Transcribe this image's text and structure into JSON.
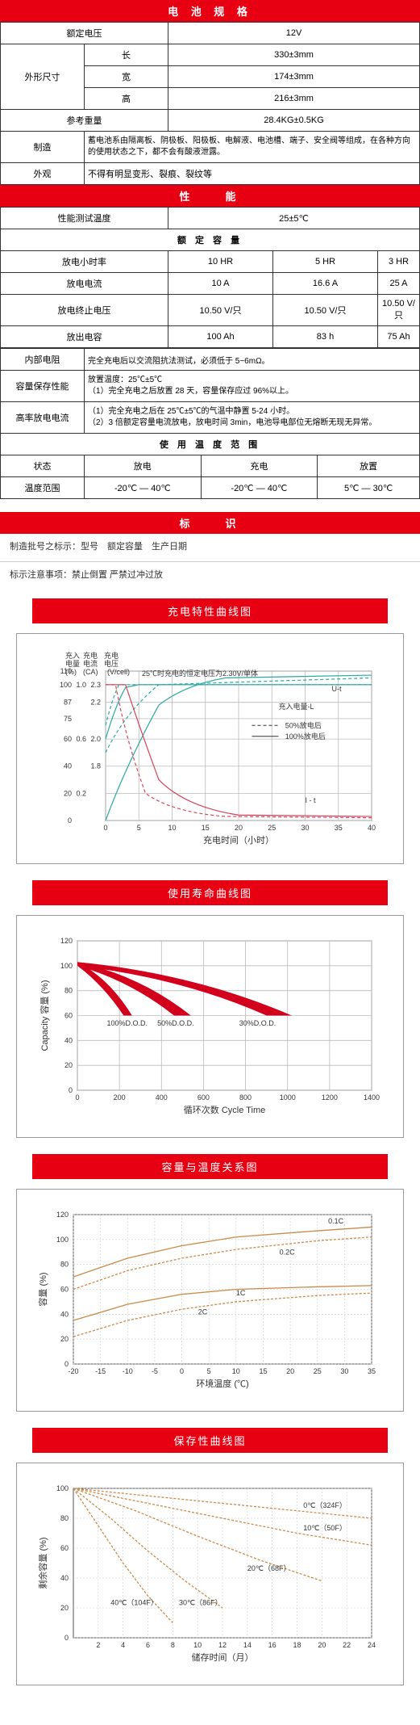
{
  "spec": {
    "title": "电 池 规 格",
    "rows": {
      "rated_v_label": "额定电压",
      "rated_v": "12V",
      "dim_label": "外形尺寸",
      "len_l": "长",
      "len_v": "330±3mm",
      "wid_l": "宽",
      "wid_v": "174±3mm",
      "hgt_l": "高",
      "hgt_v": "216±3mm",
      "weight_l": "参考重量",
      "weight_v": "28.4KG±0.5KG",
      "mfg_l": "制造",
      "mfg_v": "蓄电池系由隔离板、阴极板、阳极板、电解液、电池槽、端子、安全阀等组成，在各种方向的使用状态之下，都不会有酸液泄露。",
      "look_l": "外观",
      "look_v": "不得有明显变形、裂痕、裂纹等"
    }
  },
  "perf": {
    "title": "性　　能",
    "temp_l": "性能测试温度",
    "temp_v": "25±5℃",
    "cap_title": "额 定 容 量",
    "r1l": "放电小时率",
    "r1a": "10 HR",
    "r1b": "5 HR",
    "r1c": "3 HR",
    "r2l": "放电电流",
    "r2a": "10 A",
    "r2b": "16.6 A",
    "r2c": "25 A",
    "r3l": "放电终止电压",
    "r3a": "10.50 V/只",
    "r3b": "10.50 V/只",
    "r3c": "10.50 V/只",
    "r4l": "放出电容",
    "r4a": "100 Ah",
    "r4b": "83 h",
    "r4c": "75 Ah",
    "ir_l": "内部电阻",
    "ir_v": "完全充电后以交流阻抗法测试，必须低于 5~6mΩ。",
    "ret_l": "容量保存性能",
    "ret_v": "放置温度：25℃±5℃\n（1）完全充电之后放置 28 天，容量保存应过 96%以上。",
    "hr_l": "高率放电电流",
    "hr_v": "（1）完全充电之后在 25℃±5℃的气温中静置 5-24 小时。\n（2）3 倍额定容量电流放电，放电时间 3min，电池导电部位无熔断无现无异常。",
    "use_temp_title": "使 用 温 度 范 围",
    "st_l": "状态",
    "st_a": "放电",
    "st_b": "充电",
    "st_c": "放置",
    "tr_l": "温度范围",
    "tr_a": "-20℃ — 40℃",
    "tr_b": "-20℃ — 40℃",
    "tr_c": "5℃ — 30℃"
  },
  "mark": {
    "title": "标　　识",
    "line1": "制造批号之标示：型号　额定容量　生产日期",
    "line2": "标示注意事项：禁止倒置 严禁过冲过放"
  },
  "chart1": {
    "title": "充电特性曲线图",
    "top_note": "25℃时充电的恒定电压为2.30V/单体",
    "y1_label": "充入电量(%)",
    "y2_label": "充电电流(CA)",
    "y3_label": "充电电压(V/cell)",
    "x_label": "充电时间（小时）",
    "legend_ut": "U-t",
    "legend_cap": "充入电量-L",
    "legend_50": "50%放电后",
    "legend_100": "100%放电后",
    "legend_it": "I - t",
    "x_ticks": [
      0,
      5,
      10,
      15,
      20,
      25,
      30,
      35,
      40
    ],
    "y1_ticks": [
      0,
      20,
      40,
      60,
      75,
      87,
      100,
      110
    ],
    "y2_ticks": [
      0.2,
      0.6,
      1.0
    ],
    "y3_ticks": [
      1.8,
      2.0,
      2.2,
      2.3
    ],
    "colors": {
      "u": "#2aa9a0",
      "i": "#d9435a",
      "cap": "#2aa9a0",
      "grid": "#bbb"
    }
  },
  "chart2": {
    "title": "使用寿命曲线图",
    "y_label": "Capacity 容量 (%)",
    "x_label": "循环次数 Cycle Time",
    "x_ticks": [
      0,
      200,
      400,
      600,
      800,
      1000,
      1200,
      1400
    ],
    "y_ticks": [
      0,
      20,
      40,
      60,
      80,
      100,
      120
    ],
    "labels": {
      "a": "100%D.O.D.",
      "b": "50%D.O.D.",
      "c": "30%D.O.D."
    },
    "band_color": "#d2001c",
    "text_color": "#1a4fa0"
  },
  "chart3": {
    "title": "容量与温度关系图",
    "y_label": "容量 (%)",
    "x_label": "环境温度 (℃)",
    "x_ticks": [
      -20,
      -15,
      -10,
      -5,
      0,
      5,
      10,
      15,
      20,
      25,
      30,
      35
    ],
    "y_ticks": [
      0,
      20,
      40,
      60,
      80,
      100,
      120
    ],
    "curves": {
      "c01": "0.1C",
      "c02": "0.2C",
      "c1": "1C",
      "c2": "2C"
    },
    "line_color": "#c98a4a",
    "text_color": "#1a4fa0"
  },
  "chart4": {
    "title": "保存性曲线图",
    "y_label": "剩余容量 (%)",
    "x_label": "储存时间（月）",
    "x_ticks": [
      2,
      4,
      6,
      8,
      10,
      12,
      14,
      16,
      18,
      20,
      22,
      24
    ],
    "y_ticks": [
      0,
      20,
      40,
      60,
      80,
      100
    ],
    "labels": {
      "t0": "0℃（324F）",
      "t10": "10℃（50F）",
      "t20": "20℃（68F）",
      "t30": "30℃（86F）",
      "t40": "40℃（104F）"
    },
    "line_color": "#c98a4a",
    "text_color": "#1a4fa0"
  }
}
